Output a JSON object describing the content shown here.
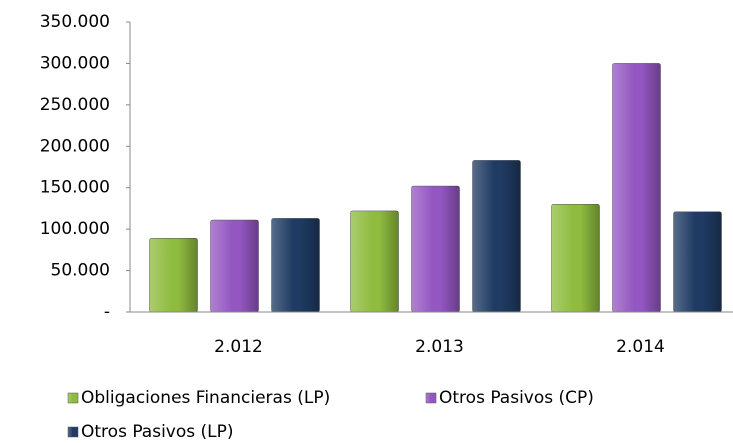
{
  "chart_data": {
    "type": "bar",
    "categories": [
      "2.012",
      "2.013",
      "2.014"
    ],
    "series": [
      {
        "name": "Obligaciones Financieras (LP)",
        "color": "#8fbc3f",
        "values": [
          89000,
          122000,
          130000
        ]
      },
      {
        "name": "Otros Pasivos (CP)",
        "color": "#9457c2",
        "values": [
          111000,
          152000,
          300000
        ]
      },
      {
        "name": "Otros Pasivos (LP)",
        "color": "#1f3b63",
        "values": [
          113000,
          183000,
          121000
        ]
      }
    ],
    "ylim": [
      0,
      350000
    ],
    "yticks": [
      {
        "value": 0,
        "label": "-"
      },
      {
        "value": 50000,
        "label": "50.000"
      },
      {
        "value": 100000,
        "label": "100.000"
      },
      {
        "value": 150000,
        "label": "150.000"
      },
      {
        "value": 200000,
        "label": "200.000"
      },
      {
        "value": 250000,
        "label": "250.000"
      },
      {
        "value": 300000,
        "label": "300.000"
      },
      {
        "value": 350000,
        "label": "350.000"
      }
    ],
    "grid": false,
    "legend": "bottom"
  }
}
